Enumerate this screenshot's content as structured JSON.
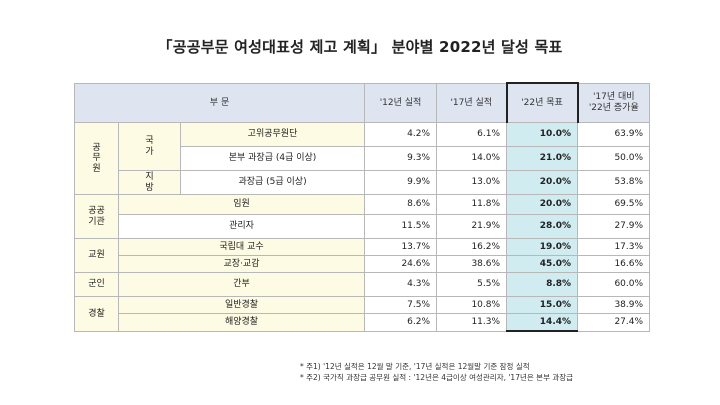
{
  "title": "「공공부문 여성대표성 제고 계획」 분야별 2022년 달성 목표",
  "header": {
    "sector": "부  문",
    "col1": "'12년 실적",
    "col2": "'17년 실적",
    "col3": "'22년 목표",
    "col4_line1": "'17년 대비",
    "col4_line2": "'22년 증가율"
  },
  "groups": {
    "g1": "공\n무\n원",
    "g1a": "국\n가",
    "g1b": "지\n방",
    "g2": "공공\n기관",
    "g3": "교원",
    "g4": "군인",
    "g5": "경찰"
  },
  "rows": [
    {
      "label": "고위공무원단",
      "v12": "4.2%",
      "v17": "6.1%",
      "v22": "10.0%",
      "inc": "63.9%"
    },
    {
      "label": "본부 과장급 (4급 이상)",
      "v12": "9.3%",
      "v17": "14.0%",
      "v22": "21.0%",
      "inc": "50.0%"
    },
    {
      "label": "과장급 (5급 이상)",
      "v12": "9.9%",
      "v17": "13.0%",
      "v22": "20.0%",
      "inc": "53.8%"
    },
    {
      "label": "임원",
      "v12": "8.6%",
      "v17": "11.8%",
      "v22": "20.0%",
      "inc": "69.5%"
    },
    {
      "label": "관리자",
      "v12": "11.5%",
      "v17": "21.9%",
      "v22": "28.0%",
      "inc": "27.9%"
    },
    {
      "label": "국립대 교수",
      "v12": "13.7%",
      "v17": "16.2%",
      "v22": "19.0%",
      "inc": "17.3%"
    },
    {
      "label": "교장·교감",
      "v12": "24.6%",
      "v17": "38.6%",
      "v22": "45.0%",
      "inc": "16.6%"
    },
    {
      "label": "간부",
      "v12": "4.3%",
      "v17": "5.5%",
      "v22": "8.8%",
      "inc": "60.0%"
    },
    {
      "label": "일반경찰",
      "v12": "7.5%",
      "v17": "10.8%",
      "v22": "15.0%",
      "inc": "38.9%"
    },
    {
      "label": "해양경찰",
      "v12": "6.2%",
      "v17": "11.3%",
      "v22": "14.4%",
      "inc": "27.4%"
    }
  ],
  "notes": [
    "* 주1) '12년 실적은 12월 말 기준, '17년 실적은 12월말 기준 잠정 실적",
    "* 주2) 국가직 과장급 공무원 실적 : '12년은 4급이상 여성관리자, '17년은 본부 과장급"
  ]
}
